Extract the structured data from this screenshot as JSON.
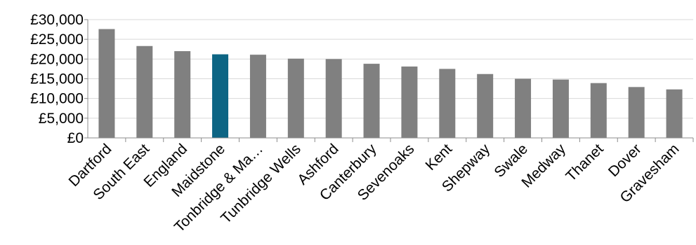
{
  "chart_data": {
    "type": "bar",
    "title": "",
    "xlabel": "",
    "ylabel": "",
    "categories": [
      "Dartford",
      "South East",
      "England",
      "Maidstone",
      "Tonbridge & Ma…",
      "Tunbridge Wells",
      "Ashford",
      "Canterbury",
      "Sevenoaks",
      "Kent",
      "Shepway",
      "Swale",
      "Medway",
      "Thanet",
      "Dover",
      "Gravesham"
    ],
    "values": [
      27600,
      23300,
      22000,
      21200,
      21100,
      20100,
      20000,
      18800,
      18100,
      17500,
      16200,
      15000,
      14800,
      13900,
      12900,
      12300
    ],
    "highlight_category": "Maidstone",
    "y_ticks": [
      0,
      5000,
      10000,
      15000,
      20000,
      25000,
      30000
    ],
    "y_tick_labels": [
      "£0",
      "£5,000",
      "£10,000",
      "£15,000",
      "£20,000",
      "£25,000",
      "£30,000"
    ],
    "ylim": [
      0,
      30000
    ],
    "grid": true,
    "legend": "none",
    "colors": {
      "bar": "#808080",
      "highlight": "#0d6584",
      "axis": "#8c8c8c",
      "grid": "#d9d9d9"
    }
  }
}
